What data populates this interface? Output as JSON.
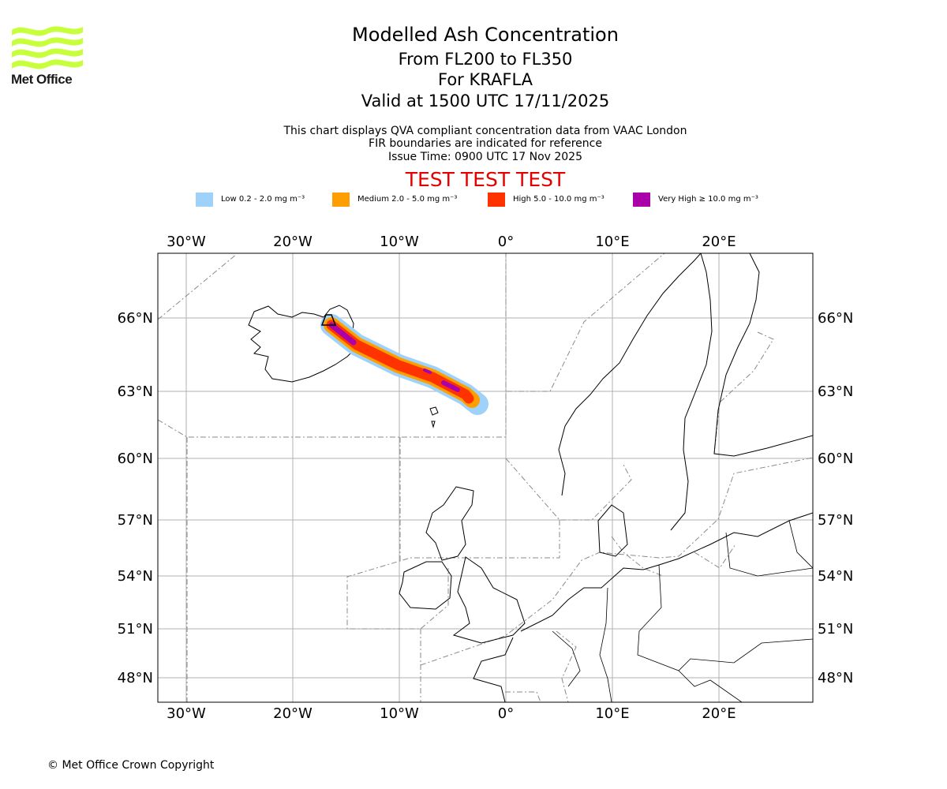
{
  "logo": {
    "brand_text": "Met Office",
    "color": "#c8ff3c"
  },
  "header": {
    "title": "Modelled Ash Concentration",
    "level_range": "From FL200 to FL350",
    "volcano": "For KRAFLA",
    "valid_time": "Valid at 1500 UTC 17/11/2025",
    "note_1": "This chart displays QVA compliant concentration data from VAAC London",
    "note_2": "FIR boundaries are indicated for reference",
    "issue_time": "Issue Time: 0900 UTC 17 Nov 2025",
    "test_banner": "TEST TEST TEST",
    "test_color": "#e50000"
  },
  "legend": [
    {
      "label": "Low 0.2 - 2.0 mg m⁻³",
      "color": "#9fd2fb"
    },
    {
      "label": "Medium 2.0 - 5.0 mg m⁻³",
      "color": "#ff9e00"
    },
    {
      "label": "High 5.0 - 10.0 mg m⁻³",
      "color": "#ff3300"
    },
    {
      "label": "Very High  ≥  10.0 mg m⁻³",
      "color": "#aa00aa"
    }
  ],
  "map": {
    "lon_labels": [
      "30°W",
      "20°W",
      "10°W",
      "0°",
      "10°E",
      "20°E"
    ],
    "lat_labels": [
      "66°N",
      "63°N",
      "60°N",
      "57°N",
      "54°N",
      "51°N",
      "48°N"
    ],
    "volcano_name": "KRAFLA",
    "volcano_position": {
      "lat": 65.7,
      "lon": -16.8
    },
    "plume_colors": {
      "low": "#9fd2fb",
      "medium": "#ff9e00",
      "high": "#ff3300",
      "very_high": "#aa00aa"
    }
  },
  "footer": {
    "copyright": "© Met Office Crown Copyright"
  }
}
